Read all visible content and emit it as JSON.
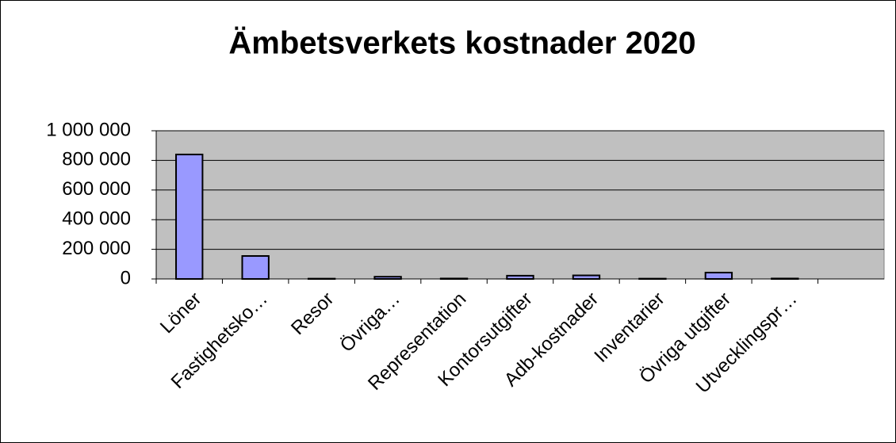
{
  "chart_data": {
    "type": "bar",
    "title": "Ämbetsverkets kostnader 2020",
    "categories": [
      "Löner",
      "Fastighetsko…",
      "Resor",
      "Övriga…",
      "Representation",
      "Kontorsutgifter",
      "Adb-kostnader",
      "Inventarier",
      "Övriga utgifter",
      "Utvecklingspr…",
      null
    ],
    "values": [
      840000,
      155000,
      2000,
      15000,
      3000,
      22000,
      24000,
      2000,
      43000,
      3000,
      null
    ],
    "color": "#9999ff",
    "ylim": [
      0,
      1000000
    ],
    "yticks": [
      0,
      {
        "value": 200000,
        "label": "200 000"
      },
      {
        "value": 400000,
        "label": "400 000"
      },
      {
        "value": 600000,
        "label": "600 000"
      },
      {
        "value": 800000,
        "label": "800 000"
      },
      {
        "value": 1000000,
        "label": "1 000 000"
      }
    ],
    "grid": true
  }
}
